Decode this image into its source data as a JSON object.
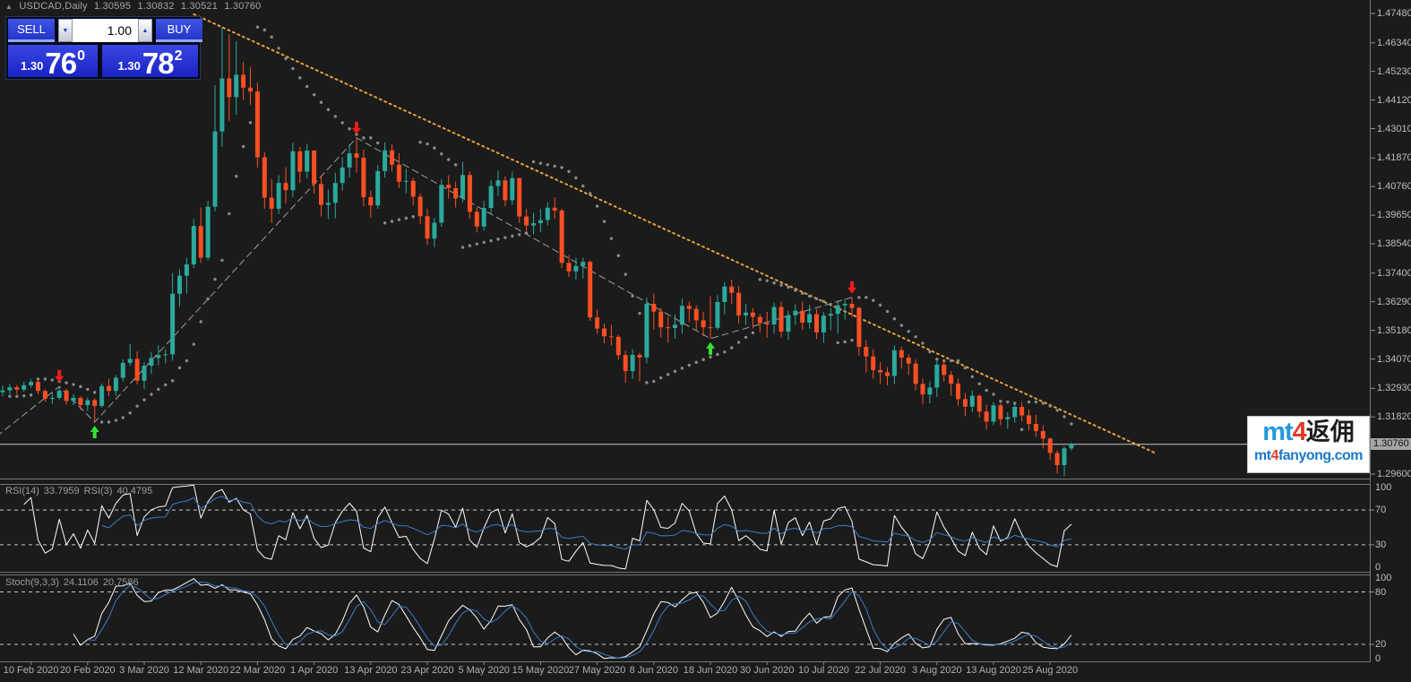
{
  "header": {
    "collapse_icon": "▲",
    "symbol": "USDCAD,Daily",
    "open": "1.30595",
    "high": "1.30832",
    "low": "1.30521",
    "close": "1.30760"
  },
  "trade_panel": {
    "sell_label": "SELL",
    "buy_label": "BUY",
    "volume": "1.00",
    "spinner_down": "▼",
    "spinner_up": "▲",
    "bid_prefix": "1.30",
    "bid_big": "76",
    "bid_sup": "0",
    "ask_prefix": "1.30",
    "ask_big": "78",
    "ask_sup": "2"
  },
  "price_axis": {
    "ticks": [
      "1.47480",
      "1.46340",
      "1.45230",
      "1.44120",
      "1.43010",
      "1.41870",
      "1.40760",
      "1.39650",
      "1.38540",
      "1.37400",
      "1.36290",
      "1.35180",
      "1.34070",
      "1.32930",
      "1.31820",
      "1.29600"
    ],
    "current": "1.30760"
  },
  "time_axis": {
    "labels": [
      "10 Feb 2020",
      "20 Feb 2020",
      "3 Mar 2020",
      "12 Mar 2020",
      "22 Mar 2020",
      "1 Apr 2020",
      "13 Apr 2020",
      "23 Apr 2020",
      "5 May 2020",
      "15 May 2020",
      "27 May 2020",
      "8 Jun 2020",
      "18 Jun 2020",
      "30 Jun 2020",
      "10 Jul 2020",
      "22 Jul 2020",
      "3 Aug 2020",
      "13 Aug 2020",
      "25 Aug 2020"
    ]
  },
  "rsi_panel": {
    "name": "RSI(14)",
    "value": "33.7959",
    "name2": "RSI(3)",
    "value2": "40.4795",
    "scale": [
      "100",
      "70",
      "30",
      "0"
    ],
    "scale_values": [
      100,
      70,
      30,
      0
    ],
    "levels": [
      70,
      30
    ]
  },
  "stoch_panel": {
    "name": "Stoch(9,3,3)",
    "value": "24.1106",
    "value2": "20.7586",
    "scale": [
      "100",
      "80",
      "20",
      "0"
    ],
    "scale_values": [
      100,
      80,
      20,
      0
    ],
    "levels": [
      80,
      20
    ]
  },
  "watermark": {
    "mt": "mt",
    "four": "4",
    "cn": "返佣",
    "site_mt": "mt",
    "site_four": "4",
    "site_rest": "fanyong.com"
  },
  "colors": {
    "bull": "#2BA99C",
    "bear": "#FB4F24",
    "sar": "#8A8A8A",
    "trendline": "#E8A13C",
    "zigzag": "#9E9E9E",
    "rsi_fast": "#FFFFFF",
    "rsi_slow": "#3E7CC8",
    "stoch_main": "#FFFFFF",
    "stoch_signal": "#3E7CC8",
    "arrow_up": "#35E235",
    "arrow_down": "#EE1C1C",
    "price_line": "#C8C8C8",
    "level_line": "#C8C8C8",
    "frame": "#787878",
    "bg": "#1B1B1B"
  },
  "chart_data": {
    "type": "candlestick",
    "title": "USDCAD Daily",
    "symbol": "USDCAD",
    "timeframe": "Daily",
    "y_axis": {
      "min": 1.296,
      "max": 1.4748
    },
    "current_price": 1.3076,
    "first_open": 1.3278,
    "candle_format": "[high, low, close] ; open = previous close",
    "candles": [
      [
        1.3304,
        1.3262,
        1.3285
      ],
      [
        1.331,
        1.327,
        1.3297
      ],
      [
        1.3306,
        1.3272,
        1.3288
      ],
      [
        1.3318,
        1.328,
        1.3305
      ],
      [
        1.3329,
        1.3296,
        1.3318
      ],
      [
        1.3324,
        1.327,
        1.3283
      ],
      [
        1.329,
        1.324,
        1.3253
      ],
      [
        1.3275,
        1.3232,
        1.3256
      ],
      [
        1.3302,
        1.3248,
        1.3284
      ],
      [
        1.3292,
        1.323,
        1.3244
      ],
      [
        1.327,
        1.3228,
        1.3256
      ],
      [
        1.3262,
        1.321,
        1.3228
      ],
      [
        1.3258,
        1.3205,
        1.3247
      ],
      [
        1.3255,
        1.3162,
        1.3225
      ],
      [
        1.3312,
        1.3218,
        1.3302
      ],
      [
        1.333,
        1.3262,
        1.3283
      ],
      [
        1.3344,
        1.3265,
        1.3334
      ],
      [
        1.3406,
        1.332,
        1.3392
      ],
      [
        1.3464,
        1.338,
        1.3407
      ],
      [
        1.3436,
        1.3308,
        1.3323
      ],
      [
        1.3394,
        1.329,
        1.3381
      ],
      [
        1.3435,
        1.335,
        1.3411
      ],
      [
        1.346,
        1.3382,
        1.3422
      ],
      [
        1.3445,
        1.339,
        1.3425
      ],
      [
        1.374,
        1.34,
        1.366
      ],
      [
        1.3755,
        1.361,
        1.373
      ],
      [
        1.38,
        1.366,
        1.3774
      ],
      [
        1.395,
        1.376,
        1.3923
      ],
      [
        1.3995,
        1.378,
        1.38
      ],
      [
        1.402,
        1.379,
        1.3998
      ],
      [
        1.447,
        1.398,
        1.429
      ],
      [
        1.4695,
        1.423,
        1.4496
      ],
      [
        1.4668,
        1.433,
        1.4423
      ],
      [
        1.464,
        1.4355,
        1.451
      ],
      [
        1.456,
        1.4412,
        1.446
      ],
      [
        1.454,
        1.4394,
        1.4445
      ],
      [
        1.448,
        1.415,
        1.419
      ],
      [
        1.421,
        1.399,
        1.4033
      ],
      [
        1.4105,
        1.3935,
        1.399
      ],
      [
        1.412,
        1.397,
        1.409
      ],
      [
        1.4151,
        1.401,
        1.4062
      ],
      [
        1.4246,
        1.4036,
        1.4213
      ],
      [
        1.423,
        1.409,
        1.4134
      ],
      [
        1.4242,
        1.4106,
        1.4216
      ],
      [
        1.4208,
        1.4048,
        1.4086
      ],
      [
        1.412,
        1.396,
        1.4005
      ],
      [
        1.4065,
        1.395,
        1.4013
      ],
      [
        1.413,
        1.3953,
        1.409
      ],
      [
        1.419,
        1.406,
        1.415
      ],
      [
        1.424,
        1.411,
        1.4205
      ],
      [
        1.4265,
        1.413,
        1.4188
      ],
      [
        1.422,
        1.4,
        1.4035
      ],
      [
        1.406,
        1.3955,
        1.4003
      ],
      [
        1.416,
        1.399,
        1.4136
      ],
      [
        1.4248,
        1.411,
        1.4217
      ],
      [
        1.424,
        1.4135,
        1.4161
      ],
      [
        1.4205,
        1.407,
        1.4095
      ],
      [
        1.4145,
        1.405,
        1.4098
      ],
      [
        1.411,
        1.4005,
        1.4037
      ],
      [
        1.405,
        1.393,
        1.3961
      ],
      [
        1.399,
        1.385,
        1.3874
      ],
      [
        1.3955,
        1.384,
        1.3936
      ],
      [
        1.4105,
        1.392,
        1.4083
      ],
      [
        1.412,
        1.403,
        1.407
      ],
      [
        1.4095,
        1.3995,
        1.403
      ],
      [
        1.4172,
        1.4015,
        1.4121
      ],
      [
        1.4135,
        1.395,
        1.3978
      ],
      [
        1.3995,
        1.3898,
        1.3921
      ],
      [
        1.402,
        1.3905,
        1.3993
      ],
      [
        1.41,
        1.397,
        1.4078
      ],
      [
        1.4138,
        1.404,
        1.41
      ],
      [
        1.4115,
        1.4,
        1.4023
      ],
      [
        1.4135,
        1.4005,
        1.4109
      ],
      [
        1.411,
        1.3935,
        1.396
      ],
      [
        1.399,
        1.39,
        1.3925
      ],
      [
        1.3975,
        1.389,
        1.3934
      ],
      [
        1.399,
        1.39,
        1.3946
      ],
      [
        1.4015,
        1.3925,
        1.3994
      ],
      [
        1.4035,
        1.395,
        1.3983
      ],
      [
        1.399,
        1.376,
        1.378
      ],
      [
        1.381,
        1.3725,
        1.3747
      ],
      [
        1.38,
        1.3715,
        1.3768
      ],
      [
        1.38,
        1.372,
        1.3784
      ],
      [
        1.379,
        1.3555,
        1.3568
      ],
      [
        1.36,
        1.3505,
        1.3525
      ],
      [
        1.3545,
        1.3468,
        1.3495
      ],
      [
        1.354,
        1.346,
        1.3493
      ],
      [
        1.35,
        1.3405,
        1.3422
      ],
      [
        1.344,
        1.3315,
        1.336
      ],
      [
        1.3445,
        1.333,
        1.3423
      ],
      [
        1.343,
        1.332,
        1.3413
      ],
      [
        1.3645,
        1.339,
        1.3621
      ],
      [
        1.366,
        1.352,
        1.3591
      ],
      [
        1.3605,
        1.349,
        1.353
      ],
      [
        1.357,
        1.347,
        1.3527
      ],
      [
        1.358,
        1.3485,
        1.354
      ],
      [
        1.364,
        1.3505,
        1.3613
      ],
      [
        1.363,
        1.355,
        1.3601
      ],
      [
        1.3615,
        1.352,
        1.3557
      ],
      [
        1.359,
        1.3495,
        1.353
      ],
      [
        1.365,
        1.3486,
        1.3528
      ],
      [
        1.3655,
        1.352,
        1.3628
      ],
      [
        1.3705,
        1.358,
        1.3688
      ],
      [
        1.3715,
        1.362,
        1.3664
      ],
      [
        1.369,
        1.3545,
        1.3576
      ],
      [
        1.362,
        1.354,
        1.3587
      ],
      [
        1.3605,
        1.3525,
        1.357
      ],
      [
        1.358,
        1.351,
        1.3546
      ],
      [
        1.359,
        1.349,
        1.3541
      ],
      [
        1.3625,
        1.3505,
        1.3609
      ],
      [
        1.363,
        1.349,
        1.3513
      ],
      [
        1.3595,
        1.348,
        1.3577
      ],
      [
        1.362,
        1.354,
        1.3594
      ],
      [
        1.363,
        1.352,
        1.3548
      ],
      [
        1.3617,
        1.3525,
        1.3581
      ],
      [
        1.36,
        1.3485,
        1.351
      ],
      [
        1.359,
        1.347,
        1.3575
      ],
      [
        1.3605,
        1.352,
        1.3582
      ],
      [
        1.3635,
        1.3505,
        1.3615
      ],
      [
        1.364,
        1.356,
        1.3621
      ],
      [
        1.3646,
        1.357,
        1.3605
      ],
      [
        1.361,
        1.342,
        1.3454
      ],
      [
        1.348,
        1.3355,
        1.3417
      ],
      [
        1.3445,
        1.333,
        1.3364
      ],
      [
        1.3395,
        1.331,
        1.3355
      ],
      [
        1.3375,
        1.3305,
        1.3341
      ],
      [
        1.346,
        1.331,
        1.3441
      ],
      [
        1.3455,
        1.337,
        1.3412
      ],
      [
        1.3425,
        1.3345,
        1.3389
      ],
      [
        1.3405,
        1.3285,
        1.331
      ],
      [
        1.333,
        1.323,
        1.3269
      ],
      [
        1.332,
        1.3235,
        1.3296
      ],
      [
        1.34,
        1.326,
        1.3385
      ],
      [
        1.34,
        1.332,
        1.3345
      ],
      [
        1.336,
        1.3265,
        1.3311
      ],
      [
        1.333,
        1.3225,
        1.3251
      ],
      [
        1.3275,
        1.3185,
        1.3222
      ],
      [
        1.3285,
        1.32,
        1.3264
      ],
      [
        1.327,
        1.318,
        1.3203
      ],
      [
        1.323,
        1.3133,
        1.3164
      ],
      [
        1.324,
        1.315,
        1.3227
      ],
      [
        1.3235,
        1.315,
        1.3173
      ],
      [
        1.32,
        1.3135,
        1.3181
      ],
      [
        1.323,
        1.316,
        1.3221
      ],
      [
        1.324,
        1.3165,
        1.3188
      ],
      [
        1.321,
        1.313,
        1.3155
      ],
      [
        1.319,
        1.3105,
        1.3127
      ],
      [
        1.315,
        1.306,
        1.3098
      ],
      [
        1.3102,
        1.3015,
        1.3042
      ],
      [
        1.3052,
        1.2962,
        1.2995
      ],
      [
        1.3068,
        1.2952,
        1.306
      ],
      [
        1.3083,
        1.3052,
        1.3076
      ]
    ],
    "indicators": {
      "rsi_fast_period": 3,
      "rsi_slow_period": 14,
      "stoch": [
        9,
        3,
        3
      ],
      "sar": {
        "step": 0.02,
        "maximum": 0.2
      }
    },
    "objects": {
      "trendline": {
        "from_index": 27,
        "from_price": 1.4745,
        "to_index": 163,
        "to_price": 1.304
      },
      "zigzag": [
        [
          -8,
          1.295
        ],
        [
          8,
          1.33
        ],
        [
          13,
          1.3162
        ],
        [
          50,
          1.4265
        ],
        [
          100,
          1.3486
        ],
        [
          120,
          1.3646
        ]
      ],
      "sell_arrows": [
        8,
        50,
        120
      ],
      "buy_arrows": [
        13,
        100
      ]
    }
  }
}
